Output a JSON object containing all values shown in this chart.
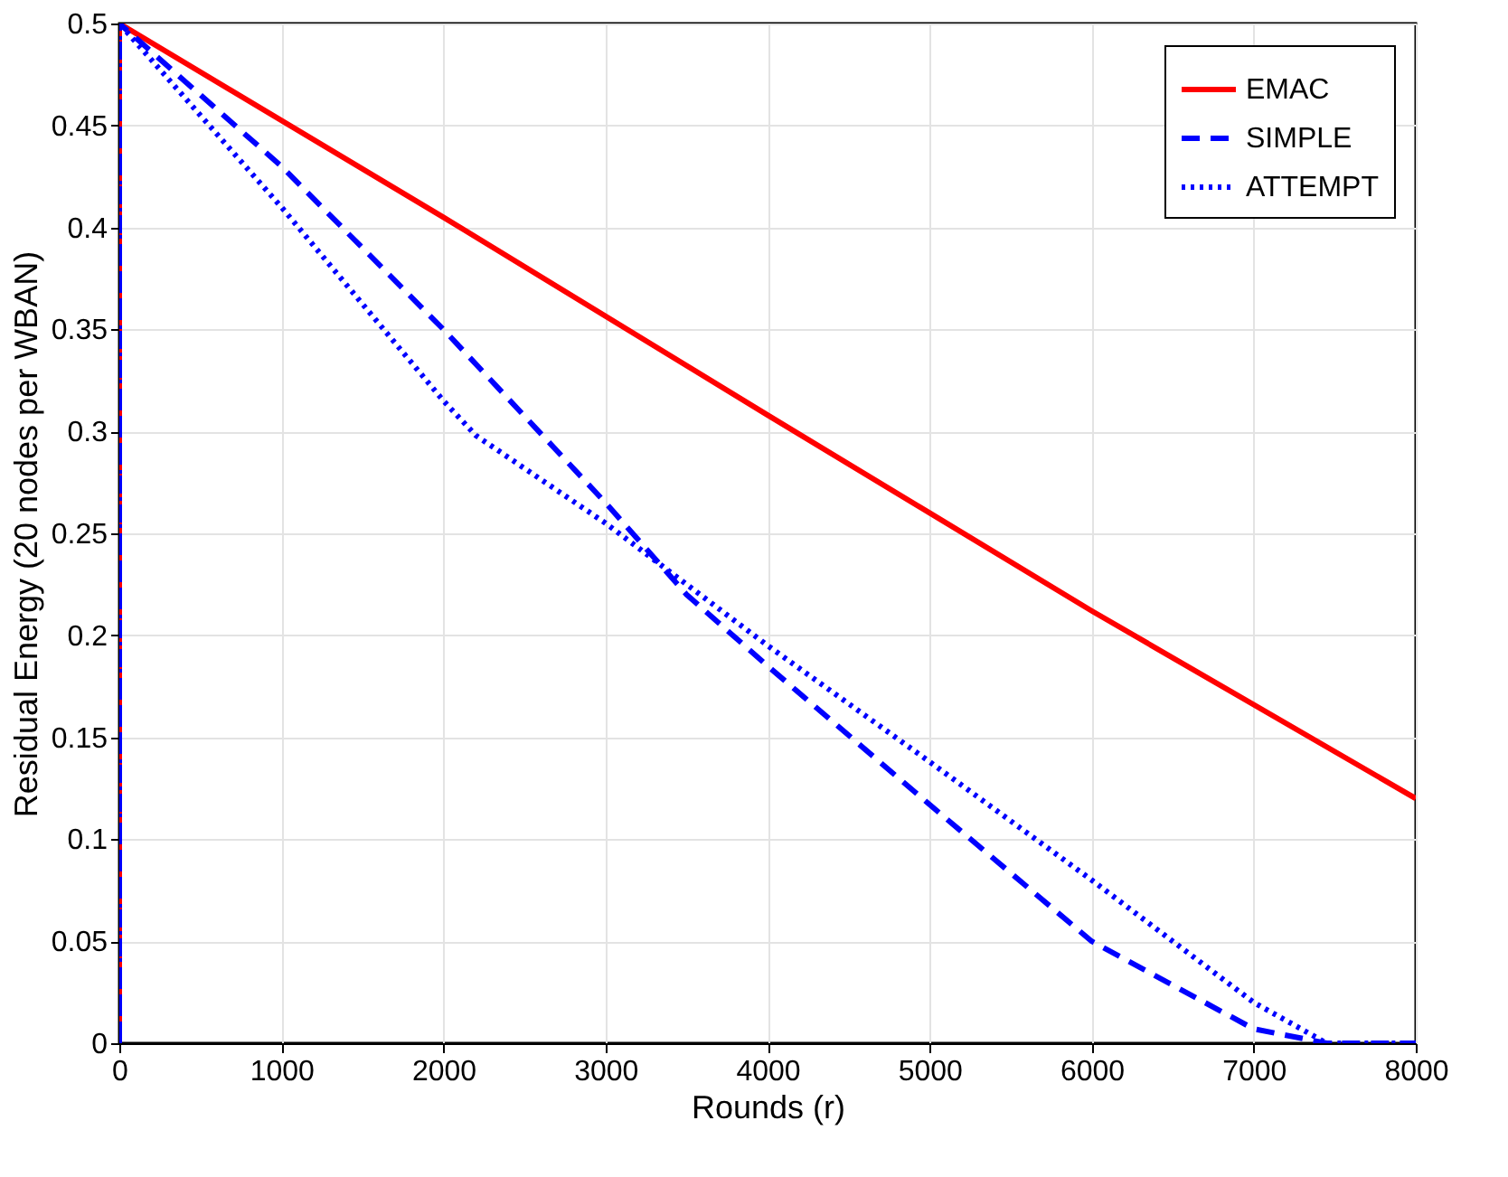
{
  "chart_data": {
    "type": "line",
    "xlabel": "Rounds (r)",
    "ylabel": "Residual Energy (20 nodes per WBAN)",
    "xlim": [
      0,
      8000
    ],
    "ylim": [
      0,
      0.5
    ],
    "xticks": [
      0,
      1000,
      2000,
      3000,
      4000,
      5000,
      6000,
      7000,
      8000
    ],
    "yticks": [
      0,
      0.05,
      0.1,
      0.15,
      0.2,
      0.25,
      0.3,
      0.35,
      0.4,
      0.45,
      0.5
    ],
    "grid": true,
    "legend": "top right",
    "series": [
      {
        "name": "EMAC",
        "color": "#ff0000",
        "line_style": "solid",
        "x": [
          0,
          0,
          2000,
          4000,
          5000,
          6000,
          8000
        ],
        "values": [
          0,
          0.5,
          0.405,
          0.308,
          0.26,
          0.212,
          0.12
        ]
      },
      {
        "name": "SIMPLE",
        "color": "#0000ff",
        "line_style": "dashed",
        "x": [
          0,
          0,
          1000,
          2000,
          3000,
          3500,
          4000,
          5000,
          6000,
          7000,
          7450,
          8000
        ],
        "values": [
          0,
          0.5,
          0.43,
          0.35,
          0.265,
          0.22,
          0.185,
          0.117,
          0.05,
          0.007,
          0,
          0
        ]
      },
      {
        "name": "ATTEMPT",
        "color": "#0000ff",
        "line_style": "dotted",
        "x": [
          0,
          0,
          1000,
          2000,
          2200,
          3000,
          4000,
          5000,
          6000,
          7000,
          7450,
          8000
        ],
        "values": [
          0,
          0.5,
          0.41,
          0.315,
          0.298,
          0.255,
          0.195,
          0.138,
          0.08,
          0.02,
          0,
          0
        ]
      }
    ]
  }
}
